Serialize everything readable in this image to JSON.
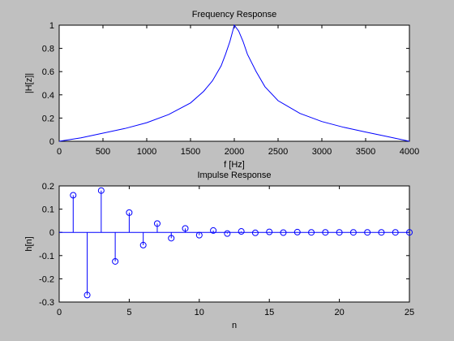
{
  "chart_data": [
    {
      "type": "line",
      "title": "Frequency Response",
      "xlabel": "f [Hz]",
      "ylabel": "|H[z]|",
      "xlim": [
        0,
        4000
      ],
      "ylim": [
        0,
        1
      ],
      "xticks": [
        0,
        500,
        1000,
        1500,
        2000,
        2500,
        3000,
        3500,
        4000
      ],
      "yticks": [
        0,
        0.2,
        0.4,
        0.6,
        0.8,
        1
      ],
      "grid": false,
      "color": "#0000ff",
      "x": [
        0,
        250,
        500,
        750,
        1000,
        1250,
        1500,
        1650,
        1750,
        1850,
        1900,
        1950,
        2000,
        2050,
        2100,
        2150,
        2250,
        2350,
        2500,
        2750,
        3000,
        3250,
        3500,
        3750,
        4000
      ],
      "y": [
        0.0,
        0.03,
        0.07,
        0.11,
        0.16,
        0.23,
        0.33,
        0.43,
        0.52,
        0.65,
        0.75,
        0.86,
        1.0,
        0.95,
        0.86,
        0.75,
        0.6,
        0.47,
        0.35,
        0.24,
        0.17,
        0.12,
        0.08,
        0.04,
        0.0
      ]
    },
    {
      "type": "stem",
      "title": "Impulse Response",
      "xlabel": "n",
      "ylabel": "h[n]",
      "xlim": [
        0,
        25
      ],
      "ylim": [
        -0.3,
        0.2
      ],
      "xticks": [
        0,
        5,
        10,
        15,
        20,
        25
      ],
      "yticks": [
        -0.3,
        -0.2,
        -0.1,
        0,
        0.1,
        0.2
      ],
      "grid": false,
      "color": "#0000ff",
      "x": [
        1,
        2,
        3,
        4,
        5,
        6,
        7,
        8,
        9,
        10,
        11,
        12,
        13,
        14,
        15,
        16,
        17,
        18,
        19,
        20,
        21,
        22,
        23,
        24,
        25
      ],
      "y": [
        0.16,
        -0.27,
        0.18,
        -0.125,
        0.085,
        -0.055,
        0.038,
        -0.025,
        0.017,
        -0.012,
        0.008,
        -0.005,
        0.004,
        -0.002,
        0.002,
        -0.001,
        0.001,
        0.0,
        0.0,
        0.0,
        0.0,
        0.0,
        0.0,
        0.0,
        0.0
      ]
    }
  ]
}
